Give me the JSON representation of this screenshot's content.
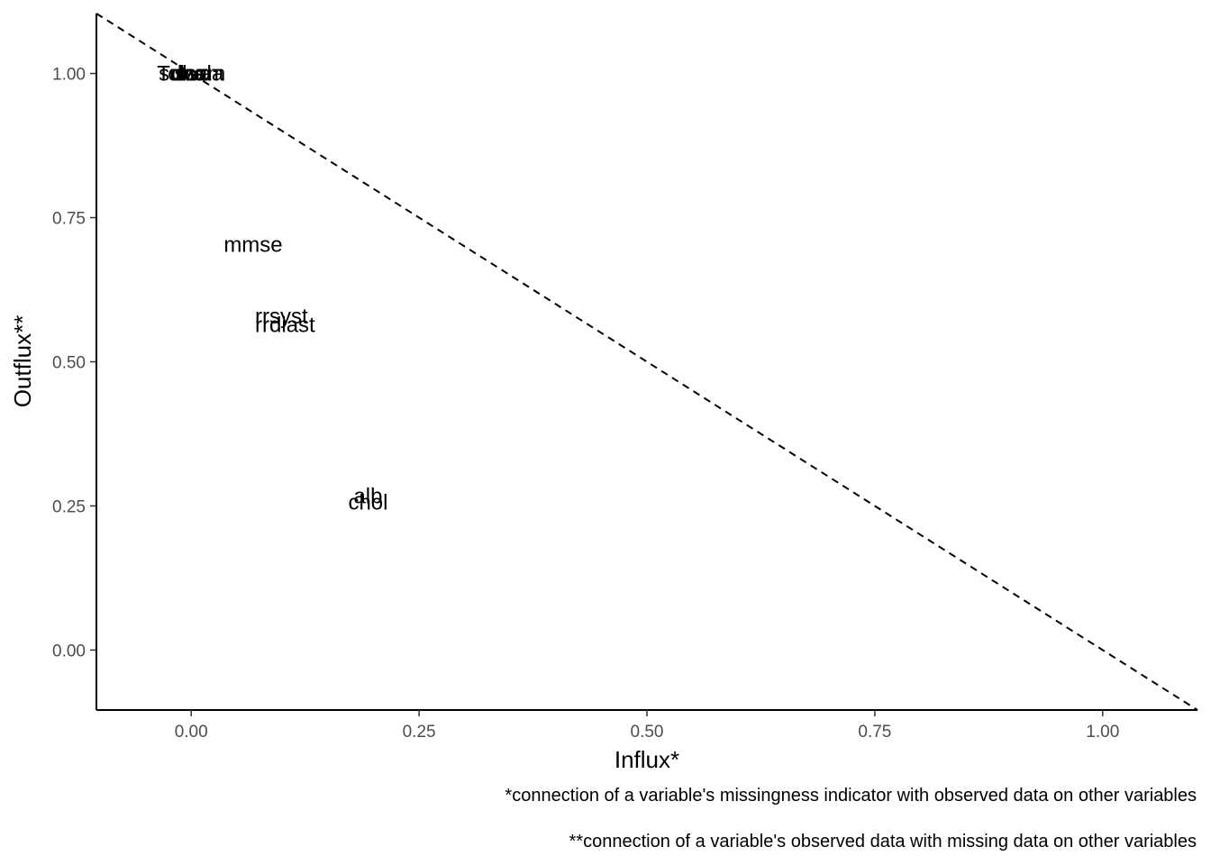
{
  "chart_data": {
    "type": "scatter",
    "title": "",
    "xlabel": "Influx*",
    "ylabel": "Outflux**",
    "xlim": [
      -0.104,
      1.104
    ],
    "ylim": [
      -0.104,
      1.104
    ],
    "grid": false,
    "x_ticks": [
      0.0,
      0.25,
      0.5,
      0.75,
      1.0
    ],
    "x_tick_labels": [
      "0.00",
      "0.25",
      "0.50",
      "0.75",
      "1.00"
    ],
    "y_ticks": [
      0.0,
      0.25,
      0.5,
      0.75,
      1.0
    ],
    "y_tick_labels": [
      "0.00",
      "0.25",
      "0.50",
      "0.75",
      "1.00"
    ],
    "reference_line": {
      "style": "dashed",
      "from": [
        -0.104,
        1.104
      ],
      "to": [
        1.104,
        -0.104
      ]
    },
    "points": [
      {
        "label": "lbs",
        "x": 0.0,
        "y": 1.0
      },
      {
        "label": "sex",
        "x": 0.0,
        "y": 1.0
      },
      {
        "label": "dwa",
        "x": 0.0,
        "y": 1.0
      },
      {
        "label": "survda",
        "x": 0.0,
        "y": 1.0
      },
      {
        "label": "Tolcam",
        "x": 0.0,
        "y": 1.0
      },
      {
        "label": "mmse",
        "x": 0.068,
        "y": 0.703
      },
      {
        "label": "rrsyst",
        "x": 0.099,
        "y": 0.579
      },
      {
        "label": "rrdiast",
        "x": 0.103,
        "y": 0.564
      },
      {
        "label": "alb",
        "x": 0.194,
        "y": 0.267
      },
      {
        "label": "chol",
        "x": 0.194,
        "y": 0.256
      }
    ],
    "captions": [
      "*connection of a variable's missingness indicator with observed data on other variables",
      "**connection of a variable's observed data with missing data on other variables"
    ]
  }
}
